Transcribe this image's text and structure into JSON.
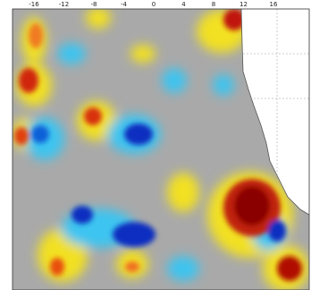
{
  "top_axis": {
    "labels": [
      "-16",
      "-12",
      "-8",
      "-4",
      "0",
      "4",
      "8",
      "12",
      "16"
    ]
  }
}
